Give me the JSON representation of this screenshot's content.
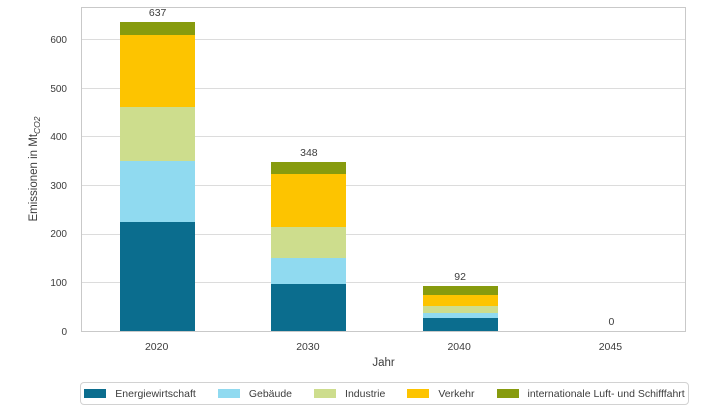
{
  "chart_data": {
    "type": "bar",
    "stacked": true,
    "title": "",
    "xlabel": "Jahr",
    "ylabel": "Emissionen in MtCO2",
    "ylabel_main": "Emissionen in Mt",
    "ylabel_sub": "CO2",
    "categories": [
      "2020",
      "2030",
      "2040",
      "2045"
    ],
    "series": [
      {
        "name": "Energiewirtschaft",
        "color": "#0b6d8e",
        "values": [
          225,
          97,
          26,
          0
        ]
      },
      {
        "name": "Gebäude",
        "color": "#90daf0",
        "values": [
          125,
          54,
          12,
          0
        ]
      },
      {
        "name": "Industrie",
        "color": "#cddd8d",
        "values": [
          112,
          63,
          14,
          0
        ]
      },
      {
        "name": "Verkehr",
        "color": "#fdc400",
        "values": [
          148,
          109,
          22,
          0
        ]
      },
      {
        "name": "internationale Luft- und Schifffahrt",
        "color": "#879b0e",
        "values": [
          27,
          25,
          18,
          0
        ]
      }
    ],
    "totals": [
      637,
      348,
      92,
      0
    ],
    "ylim": [
      0,
      670
    ],
    "yticks": [
      0,
      100,
      200,
      300,
      400,
      500,
      600
    ],
    "grid": true,
    "legend_position": "bottom",
    "colors": {
      "plot_border": "#c9c9c9",
      "gridline": "#dcdcdc",
      "text": "#3c3c3c",
      "background": "#ffffff"
    }
  }
}
